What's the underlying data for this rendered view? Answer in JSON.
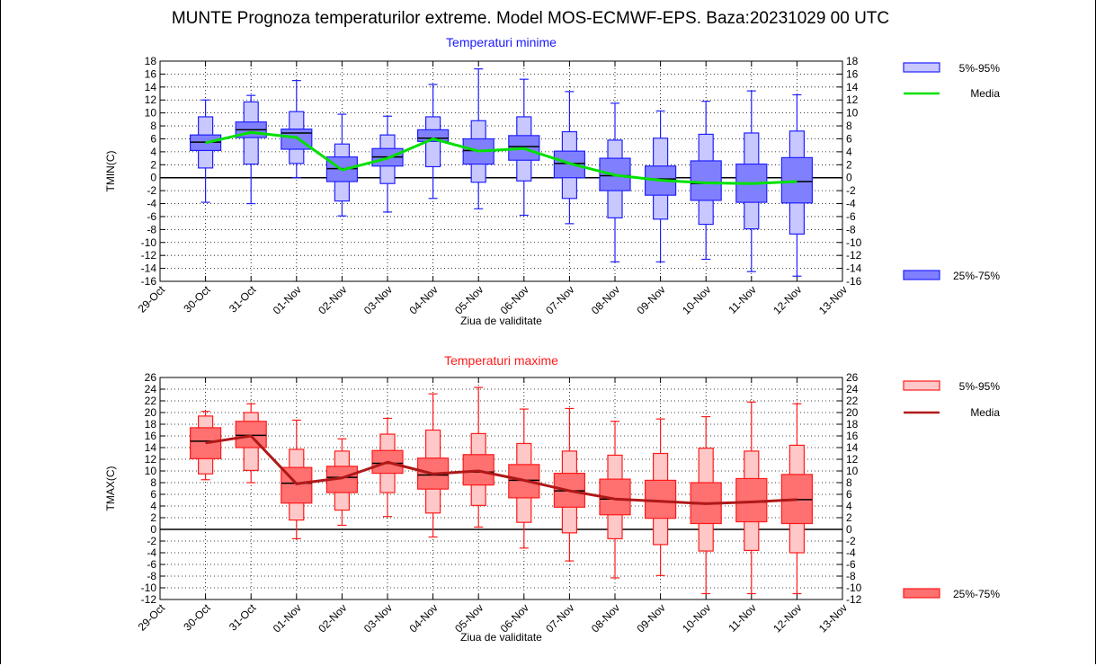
{
  "title": "MUNTE  Prognoza temperaturilor extreme.  Model MOS-ECMWF-EPS. Baza:20231029 00 UTC",
  "chart_data": [
    {
      "type": "box",
      "title": "Temperaturi minime",
      "ylabel": "TMIN(C)",
      "xlabel": "Ziua de validitate",
      "ylim": [
        -16,
        18
      ],
      "ytick_step": 2,
      "categories": [
        "29-Oct",
        "30-Oct",
        "31-Oct",
        "01-Nov",
        "02-Nov",
        "03-Nov",
        "04-Nov",
        "05-Nov",
        "06-Nov",
        "07-Nov",
        "08-Nov",
        "09-Nov",
        "10-Nov",
        "11-Nov",
        "12-Nov",
        "13-Nov"
      ],
      "legend": {
        "outer": "5%-95%",
        "mean": "Media",
        "inner": "25%-75%",
        "placement": "right"
      },
      "colors": {
        "box": "#8080ff",
        "box_light": "#c8c8ff",
        "edge": "#2020ff",
        "mean": "#00e000",
        "median": "#000000"
      },
      "boxes": [
        {
          "x": "30-Oct",
          "p5": -3.8,
          "p95": 12.0,
          "p5box": 1.5,
          "p95box": 9.4,
          "q25": 4.2,
          "q75": 6.6,
          "median": 5.5
        },
        {
          "x": "31-Oct",
          "p5": -4.0,
          "p95": 12.7,
          "p5box": 2.1,
          "p95box": 11.7,
          "q25": 6.2,
          "q75": 8.6,
          "median": 7.4
        },
        {
          "x": "01-Nov",
          "p5": 0.0,
          "p95": 15.0,
          "p5box": 2.2,
          "p95box": 10.2,
          "q25": 4.4,
          "q75": 7.5,
          "median": 6.9
        },
        {
          "x": "02-Nov",
          "p5": -5.9,
          "p95": 9.8,
          "p5box": -3.6,
          "p95box": 5.2,
          "q25": -0.6,
          "q75": 3.2,
          "median": 1.4
        },
        {
          "x": "03-Nov",
          "p5": -5.3,
          "p95": 9.5,
          "p5box": -0.9,
          "p95box": 6.6,
          "q25": 1.8,
          "q75": 4.5,
          "median": 3.2
        },
        {
          "x": "04-Nov",
          "p5": -3.2,
          "p95": 14.4,
          "p5box": 1.7,
          "p95box": 9.4,
          "q25": 5.6,
          "q75": 7.4,
          "median": 6.1
        },
        {
          "x": "05-Nov",
          "p5": -4.8,
          "p95": 16.8,
          "p5box": -0.7,
          "p95box": 8.8,
          "q25": 2.1,
          "q75": 6.0,
          "median": 4.2
        },
        {
          "x": "06-Nov",
          "p5": -5.8,
          "p95": 15.2,
          "p5box": -0.5,
          "p95box": 9.4,
          "q25": 2.7,
          "q75": 6.5,
          "median": 4.8
        },
        {
          "x": "07-Nov",
          "p5": -7.1,
          "p95": 13.3,
          "p5box": -3.2,
          "p95box": 7.1,
          "q25": 0.0,
          "q75": 4.1,
          "median": 2.2
        },
        {
          "x": "08-Nov",
          "p5": -13.0,
          "p95": 11.5,
          "p5box": -6.2,
          "p95box": 5.8,
          "q25": -2.0,
          "q75": 3.0,
          "median": 0.3
        },
        {
          "x": "09-Nov",
          "p5": -13.0,
          "p95": 10.3,
          "p5box": -6.4,
          "p95box": 6.1,
          "q25": -2.7,
          "q75": 1.8,
          "median": -0.2
        },
        {
          "x": "10-Nov",
          "p5": -12.6,
          "p95": 11.8,
          "p5box": -7.2,
          "p95box": 6.7,
          "q25": -3.5,
          "q75": 2.6,
          "median": -0.9
        },
        {
          "x": "11-Nov",
          "p5": -14.5,
          "p95": 13.4,
          "p5box": -7.9,
          "p95box": 6.9,
          "q25": -3.8,
          "q75": 2.1,
          "median": -0.9
        },
        {
          "x": "12-Nov",
          "p5": -15.2,
          "p95": 12.8,
          "p5box": -8.7,
          "p95box": 7.2,
          "q25": -3.9,
          "q75": 3.1,
          "median": -0.6
        }
      ],
      "mean": {
        "x": [
          "30-Oct",
          "31-Oct",
          "01-Nov",
          "02-Nov",
          "03-Nov",
          "04-Nov",
          "05-Nov",
          "06-Nov",
          "07-Nov",
          "08-Nov",
          "09-Nov",
          "10-Nov",
          "11-Nov",
          "12-Nov"
        ],
        "values": [
          5.4,
          7.0,
          6.2,
          1.2,
          3.0,
          6.0,
          4.1,
          4.5,
          2.2,
          0.4,
          -0.4,
          -0.8,
          -0.9,
          -0.6
        ]
      }
    },
    {
      "type": "box",
      "title": "Temperaturi maxime",
      "ylabel": "TMAX(C)",
      "xlabel": "Ziua de validitate",
      "ylim": [
        -12,
        26
      ],
      "ytick_step": 2,
      "categories": [
        "29-Oct",
        "30-Oct",
        "31-Oct",
        "01-Nov",
        "02-Nov",
        "03-Nov",
        "04-Nov",
        "05-Nov",
        "06-Nov",
        "07-Nov",
        "08-Nov",
        "09-Nov",
        "10-Nov",
        "11-Nov",
        "12-Nov",
        "13-Nov"
      ],
      "legend": {
        "outer": "5%-95%",
        "mean": "Media",
        "inner": "25%-75%",
        "placement": "right"
      },
      "colors": {
        "box": "#ff7070",
        "box_light": "#ffc8c8",
        "edge": "#ff1a1a",
        "mean": "#b01818",
        "median": "#000000"
      },
      "boxes": [
        {
          "x": "30-Oct",
          "p5": 8.5,
          "p95": 20.2,
          "p5box": 9.5,
          "p95box": 19.4,
          "q25": 12.1,
          "q75": 17.4,
          "median": 15.1
        },
        {
          "x": "31-Oct",
          "p5": 8.0,
          "p95": 21.5,
          "p5box": 10.1,
          "p95box": 20.0,
          "q25": 14.0,
          "q75": 18.5,
          "median": 16.1
        },
        {
          "x": "01-Nov",
          "p5": -1.6,
          "p95": 18.7,
          "p5box": 1.6,
          "p95box": 13.7,
          "q25": 4.5,
          "q75": 10.6,
          "median": 7.9
        },
        {
          "x": "02-Nov",
          "p5": 0.7,
          "p95": 15.5,
          "p5box": 3.3,
          "p95box": 13.4,
          "q25": 6.3,
          "q75": 10.8,
          "median": 8.9
        },
        {
          "x": "03-Nov",
          "p5": 2.2,
          "p95": 19.0,
          "p5box": 6.3,
          "p95box": 16.3,
          "q25": 9.6,
          "q75": 13.5,
          "median": 11.3
        },
        {
          "x": "04-Nov",
          "p5": -1.3,
          "p95": 23.2,
          "p5box": 2.8,
          "p95box": 17.0,
          "q25": 6.9,
          "q75": 12.2,
          "median": 9.3
        },
        {
          "x": "05-Nov",
          "p5": 0.4,
          "p95": 24.3,
          "p5box": 4.1,
          "p95box": 16.4,
          "q25": 7.6,
          "q75": 12.8,
          "median": 9.8
        },
        {
          "x": "06-Nov",
          "p5": -3.2,
          "p95": 20.6,
          "p5box": 1.2,
          "p95box": 14.7,
          "q25": 5.4,
          "q75": 11.1,
          "median": 8.4
        },
        {
          "x": "07-Nov",
          "p5": -5.4,
          "p95": 20.7,
          "p5box": -0.6,
          "p95box": 13.4,
          "q25": 3.8,
          "q75": 9.6,
          "median": 6.6
        },
        {
          "x": "08-Nov",
          "p5": -8.3,
          "p95": 18.5,
          "p5box": -1.6,
          "p95box": 12.7,
          "q25": 2.5,
          "q75": 8.6,
          "median": 5.2
        },
        {
          "x": "09-Nov",
          "p5": -7.9,
          "p95": 18.9,
          "p5box": -2.6,
          "p95box": 13.0,
          "q25": 1.9,
          "q75": 8.4,
          "median": 4.8
        },
        {
          "x": "10-Nov",
          "p5": -11.0,
          "p95": 19.3,
          "p5box": -3.7,
          "p95box": 13.9,
          "q25": 1.0,
          "q75": 8.0,
          "median": 4.4
        },
        {
          "x": "11-Nov",
          "p5": -11.0,
          "p95": 21.8,
          "p5box": -3.6,
          "p95box": 13.4,
          "q25": 1.3,
          "q75": 8.7,
          "median": 4.7
        },
        {
          "x": "12-Nov",
          "p5": -11.0,
          "p95": 21.5,
          "p5box": -4.0,
          "p95box": 14.4,
          "q25": 1.0,
          "q75": 9.4,
          "median": 5.1
        }
      ],
      "mean": {
        "x": [
          "30-Oct",
          "31-Oct",
          "01-Nov",
          "02-Nov",
          "03-Nov",
          "04-Nov",
          "05-Nov",
          "06-Nov",
          "07-Nov",
          "08-Nov",
          "09-Nov",
          "10-Nov",
          "11-Nov",
          "12-Nov"
        ],
        "values": [
          14.8,
          16.0,
          7.8,
          8.8,
          11.5,
          9.5,
          10.0,
          8.4,
          6.6,
          5.2,
          4.8,
          4.4,
          4.7,
          5.1
        ]
      }
    }
  ]
}
